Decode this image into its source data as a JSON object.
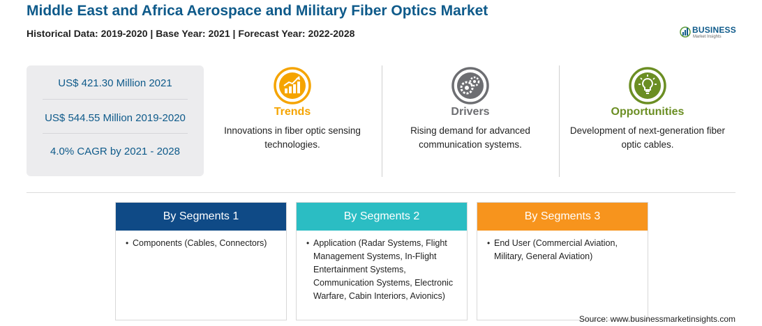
{
  "header": {
    "title": "Middle East and Africa Aerospace and Military Fiber Optics Market",
    "subtitle": "Historical Data: 2019-2020 | Base Year: 2021 | Forecast Year: 2022-2028"
  },
  "logo": {
    "name": "BUSINESS",
    "tagline": "Market Insights"
  },
  "stats": [
    {
      "text": "US$ 421.30 Million 2021"
    },
    {
      "text": "US$ 544.55 Million 2019-2020"
    },
    {
      "text": "4.0% CAGR by 2021 - 2028"
    }
  ],
  "features": {
    "trends": {
      "heading": "Trends",
      "text": "Innovations in fiber optic sensing technologies.",
      "icon": "trend-chart-icon",
      "color": "#f5a400"
    },
    "drivers": {
      "heading": "Drivers",
      "text": "Rising demand for advanced communication systems.",
      "icon": "gears-icon",
      "color": "#6d6e72"
    },
    "opportunities": {
      "heading": "Opportunities",
      "text": "Development of next-generation fiber optic cables.",
      "icon": "lightbulb-icon",
      "color": "#6b8e23"
    }
  },
  "segments": [
    {
      "heading": "By Segments 1",
      "item": "Components (Cables, Connectors)",
      "color": "#0f4a86"
    },
    {
      "heading": "By Segments 2",
      "item": "Application (Radar Systems, Flight Management Systems, In-Flight Entertainment Systems, Communication Systems, Electronic Warfare, Cabin Interiors, Avionics)",
      "color": "#2bbdc3"
    },
    {
      "heading": "By Segments 3",
      "item": "End User (Commercial Aviation, Military, General Aviation)",
      "color": "#f7941d"
    }
  ],
  "bullet_symbol": "•",
  "source": "Source: www.businessmarketinsights.com"
}
